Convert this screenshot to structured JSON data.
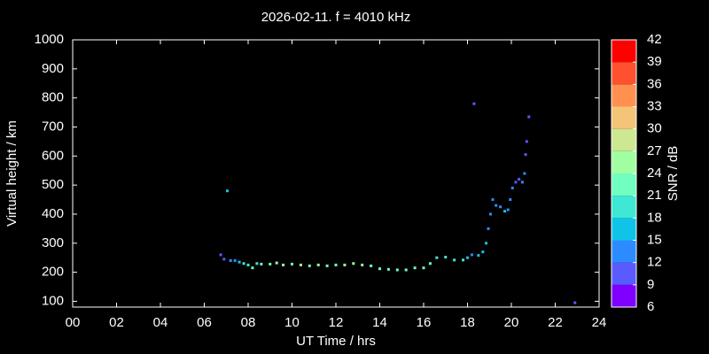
{
  "chart_data": {
    "type": "scatter",
    "title": "2026-02-11. f = 4010 kHz",
    "x_label": "UT Time / hrs",
    "y_label": "Virtual height / km",
    "colorbar_label": "SNR / dB",
    "x": [
      6.75,
      6.9,
      7.05,
      7.2,
      7.4,
      7.6,
      7.8,
      8.0,
      8.2,
      8.4,
      8.6,
      9.0,
      9.3,
      9.6,
      10.0,
      10.4,
      10.8,
      11.2,
      11.6,
      12.0,
      12.4,
      12.8,
      13.2,
      13.6,
      14.0,
      14.4,
      14.8,
      15.2,
      15.6,
      16.0,
      16.3,
      16.6,
      17.0,
      17.4,
      17.8,
      18.0,
      18.2,
      18.3,
      18.5,
      18.7,
      18.85,
      18.95,
      19.05,
      19.15,
      19.3,
      19.5,
      19.7,
      19.85,
      19.95,
      20.05,
      20.2,
      20.35,
      20.5,
      20.6,
      20.65,
      20.7,
      20.8,
      22.9
    ],
    "values": [
      260,
      245,
      480,
      240,
      240,
      235,
      230,
      225,
      215,
      230,
      228,
      228,
      232,
      225,
      228,
      225,
      222,
      225,
      222,
      225,
      225,
      230,
      225,
      222,
      212,
      210,
      208,
      208,
      215,
      215,
      230,
      250,
      252,
      242,
      242,
      250,
      260,
      780,
      258,
      270,
      300,
      350,
      400,
      450,
      430,
      425,
      410,
      415,
      450,
      490,
      510,
      520,
      510,
      540,
      605,
      650,
      735,
      95
    ],
    "snr": [
      10,
      11,
      17,
      12,
      14,
      15,
      18,
      20,
      22,
      20,
      22,
      23,
      24,
      24,
      23,
      24,
      23,
      24,
      22,
      23,
      24,
      26,
      24,
      23,
      22,
      23,
      22,
      22,
      21,
      22,
      21,
      19,
      19,
      20,
      19,
      16,
      14,
      11,
      16,
      17,
      15,
      14,
      12,
      12,
      13,
      12,
      17,
      14,
      12,
      12,
      11,
      11,
      12,
      12,
      11,
      11,
      11,
      11
    ],
    "xlim": [
      0,
      24
    ],
    "ylim": [
      80,
      1000
    ],
    "xticks": [
      {
        "value": 0,
        "label": "00"
      },
      {
        "value": 2,
        "label": "02"
      },
      {
        "value": 4,
        "label": "04"
      },
      {
        "value": 6,
        "label": "06"
      },
      {
        "value": 8,
        "label": "08"
      },
      {
        "value": 10,
        "label": "10"
      },
      {
        "value": 12,
        "label": "12"
      },
      {
        "value": 14,
        "label": "14"
      },
      {
        "value": 16,
        "label": "16"
      },
      {
        "value": 18,
        "label": "18"
      },
      {
        "value": 20,
        "label": "20"
      },
      {
        "value": 22,
        "label": "22"
      },
      {
        "value": 24,
        "label": "24"
      }
    ],
    "yticks": [
      100,
      200,
      300,
      400,
      500,
      600,
      700,
      800,
      900,
      1000
    ],
    "clim": [
      6,
      42
    ],
    "cticks": [
      6,
      9,
      12,
      15,
      18,
      21,
      24,
      27,
      30,
      33,
      36,
      39,
      42
    ],
    "colors": [
      "#8000ff",
      "#5a5aff",
      "#2c8cff",
      "#10c4e8",
      "#3ee8d4",
      "#70ffc0",
      "#a0ffa0",
      "#cce890",
      "#f4c478",
      "#ff9050",
      "#ff5030",
      "#ff0000"
    ]
  }
}
